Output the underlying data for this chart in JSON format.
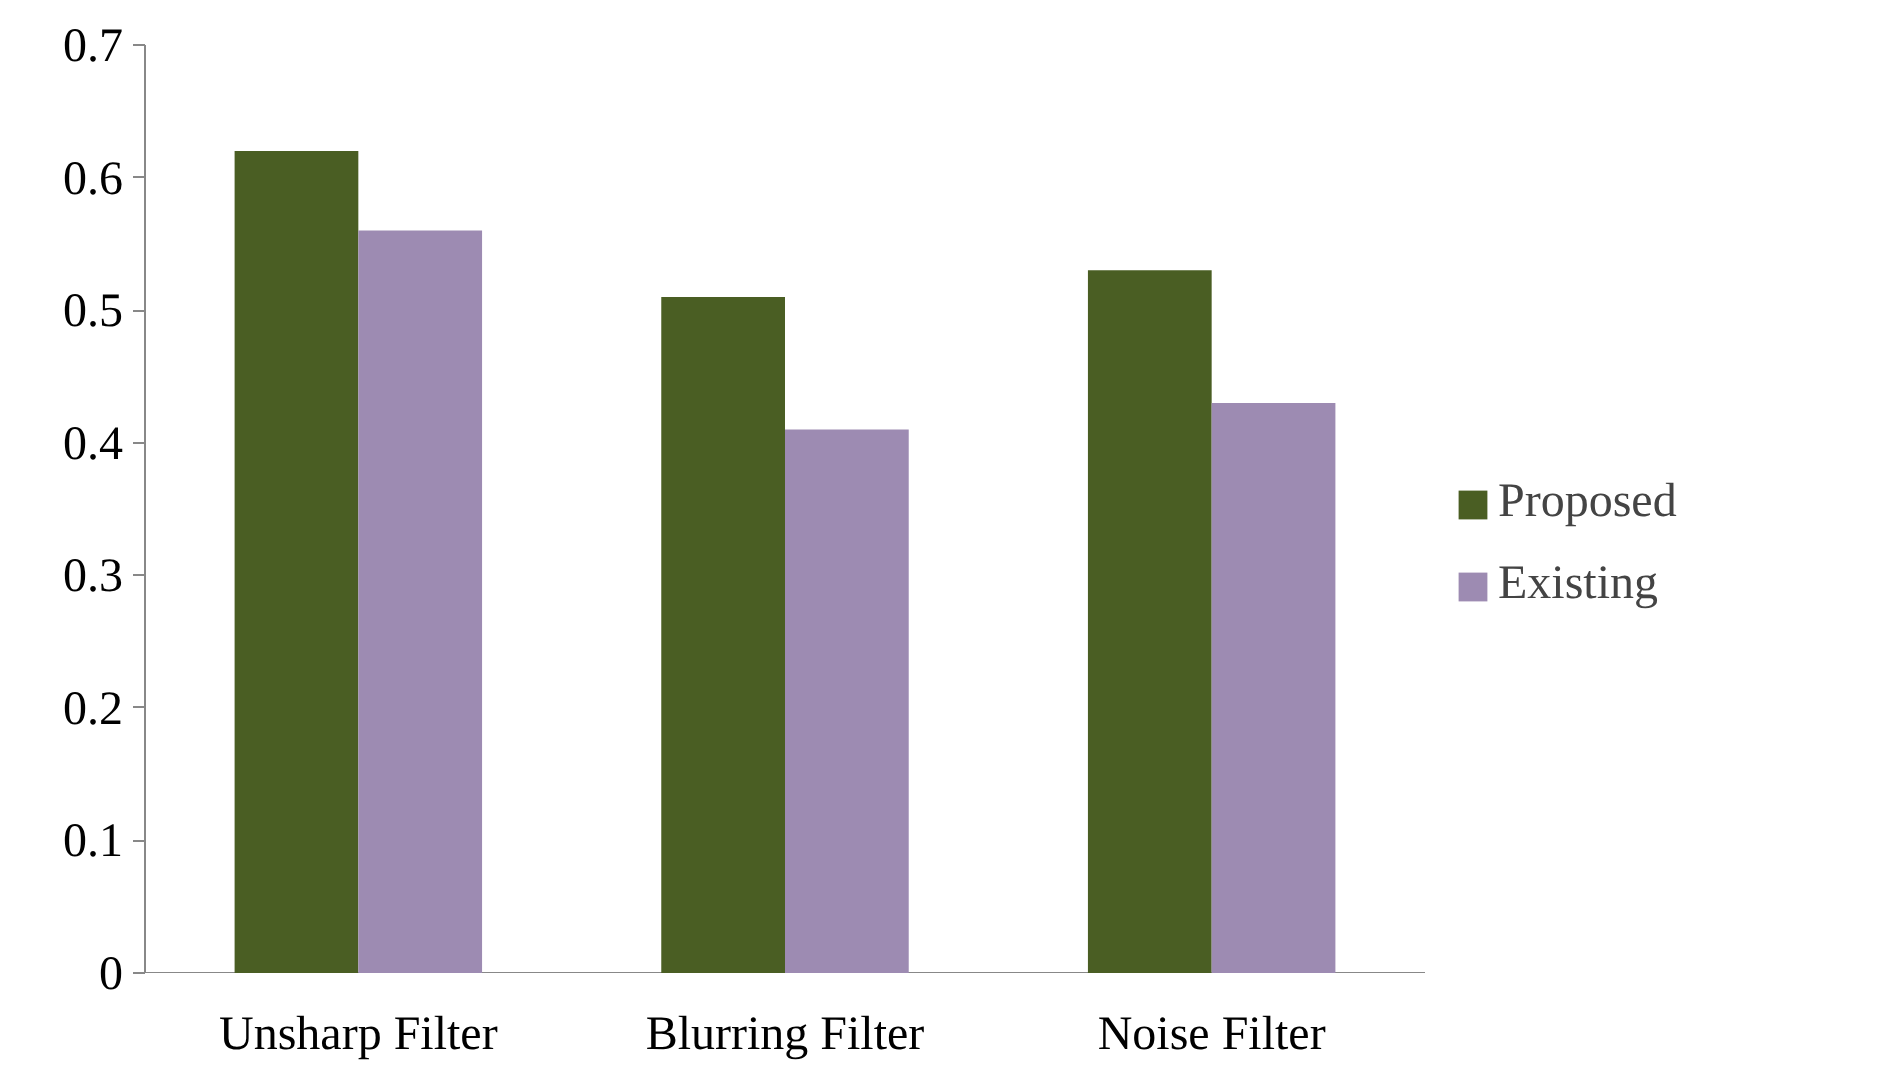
{
  "chart_data": {
    "type": "bar",
    "categories": [
      "Unsharp Filter",
      "Blurring Filter",
      "Noise Filter"
    ],
    "series": [
      {
        "name": "Proposed",
        "color": "#4a5e23",
        "values": [
          0.62,
          0.51,
          0.53
        ]
      },
      {
        "name": "Existing",
        "color": "#9d8bb2",
        "values": [
          0.56,
          0.41,
          0.43
        ]
      }
    ],
    "ylim": [
      0,
      0.7
    ],
    "yticks": [
      0,
      0.1,
      0.2,
      0.3,
      0.4,
      0.5,
      0.6,
      0.7
    ],
    "grid": false,
    "legend": "right"
  }
}
